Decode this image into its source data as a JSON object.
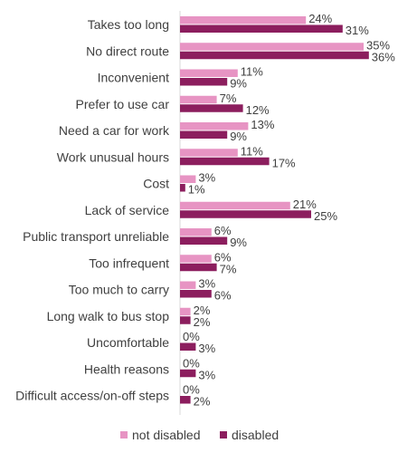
{
  "chart_data": {
    "type": "bar",
    "orientation": "horizontal",
    "title": "",
    "xlabel": "",
    "ylabel": "",
    "xlim": [
      0,
      40
    ],
    "grid": false,
    "legend_position": "bottom",
    "categories": [
      "Takes too long",
      "No direct route",
      "Inconvenient",
      "Prefer to use car",
      "Need a car for work",
      "Work unusual hours",
      "Cost",
      "Lack of service",
      "Public transport unreliable",
      "Too infrequent",
      "Too much to carry",
      "Long walk to bus stop",
      "Uncomfortable",
      "Health reasons",
      "Difficult access/on-off steps"
    ],
    "series": [
      {
        "name": "not disabled",
        "color": "#E794C3",
        "values": [
          24,
          35,
          11,
          7,
          13,
          11,
          3,
          21,
          6,
          6,
          3,
          2,
          0,
          0,
          0
        ],
        "labels": [
          "24%",
          "35%",
          "11%",
          "7%",
          "13%",
          "11%",
          "3%",
          "21%",
          "6%",
          "6%",
          "3%",
          "2%",
          "0%",
          "0%",
          "0%"
        ]
      },
      {
        "name": "disabled",
        "color": "#8C1E5E",
        "values": [
          31,
          36,
          9,
          12,
          9,
          17,
          1,
          25,
          9,
          7,
          6,
          2,
          3,
          3,
          2
        ],
        "labels": [
          "31%",
          "36%",
          "9%",
          "12%",
          "9%",
          "17%",
          "1%",
          "25%",
          "9%",
          "7%",
          "6%",
          "2%",
          "3%",
          "3%",
          "2%"
        ]
      }
    ]
  }
}
